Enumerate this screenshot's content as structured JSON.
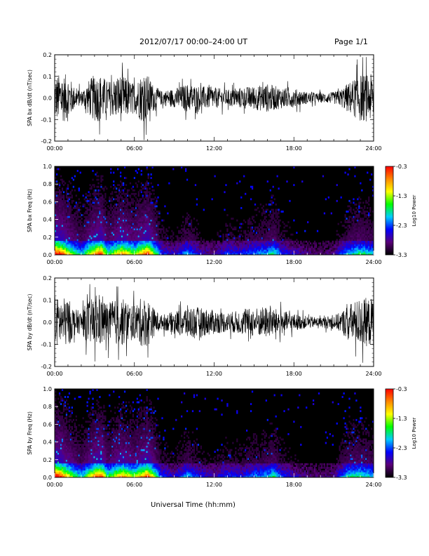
{
  "header": {
    "title": "2012/07/17  00:00–24:00 UT",
    "page": "Page 1/1"
  },
  "xaxis": {
    "label": "Universal Time (hh:mm)",
    "ticks": [
      "00:00",
      "06:00",
      "12:00",
      "18:00",
      "24:00"
    ]
  },
  "colorbar": {
    "label": "Log10 Power",
    "ticks": [
      "-0.3",
      "-1.3",
      "-2.3",
      "-3.3"
    ],
    "colors": [
      "#000000",
      "#5a0078",
      "#0000ff",
      "#00ccff",
      "#00ff00",
      "#ffff00",
      "#ff8800",
      "#ff0000"
    ]
  },
  "chart_data": [
    {
      "type": "line",
      "ylabel": "SPA bx dB/dt (nT/sec)",
      "xlim": [
        0,
        24
      ],
      "ylim": [
        -0.2,
        0.2
      ],
      "yticks": [
        "0.2",
        "0.1",
        "0.0",
        "-0.1",
        "-0.2"
      ],
      "envelope": {
        "hours": [
          0,
          1,
          1.5,
          2,
          2.5,
          3,
          3.5,
          4,
          5,
          6,
          6.5,
          7,
          7.5,
          8,
          9,
          10,
          11,
          12,
          13,
          14,
          15,
          16,
          17,
          18,
          19,
          20,
          21,
          21.5,
          22,
          23,
          24
        ],
        "amplitude": [
          0.2,
          0.2,
          0.09,
          0.06,
          0.14,
          0.2,
          0.2,
          0.14,
          0.2,
          0.12,
          0.2,
          0.2,
          0.1,
          0.06,
          0.08,
          0.12,
          0.1,
          0.09,
          0.07,
          0.09,
          0.1,
          0.12,
          0.09,
          0.08,
          0.05,
          0.04,
          0.05,
          0.07,
          0.12,
          0.2,
          0.2
        ]
      }
    },
    {
      "type": "heatmap",
      "ylabel": "SPA bx Freq (Hz)",
      "xlim": [
        0,
        24
      ],
      "ylim": [
        0,
        1.0
      ],
      "yticks": [
        "1.0",
        "0.8",
        "0.6",
        "0.4",
        "0.2",
        "0.0"
      ],
      "zlim": [
        -3.3,
        -0.3
      ],
      "activity": {
        "hours": [
          0,
          0.5,
          1,
          2,
          3,
          3.5,
          4,
          5,
          6,
          7,
          8,
          9,
          10,
          11,
          12,
          13,
          14,
          15,
          16,
          16.5,
          17,
          18,
          19,
          20,
          21,
          22,
          23,
          24
        ],
        "level": [
          1.0,
          0.9,
          0.7,
          0.4,
          0.8,
          0.9,
          0.5,
          0.8,
          0.6,
          0.9,
          0.3,
          0.2,
          0.4,
          0.2,
          0.15,
          0.3,
          0.25,
          0.35,
          0.4,
          0.5,
          0.3,
          0.2,
          0.15,
          0.1,
          0.15,
          0.4,
          0.5,
          0.4
        ]
      }
    },
    {
      "type": "line",
      "ylabel": "SPA by dB/dt (nT/sec)",
      "xlim": [
        0,
        24
      ],
      "ylim": [
        -0.2,
        0.2
      ],
      "yticks": [
        "0.2",
        "0.1",
        "0.0",
        "-0.1",
        "-0.2"
      ],
      "envelope": {
        "hours": [
          0,
          1,
          1.5,
          2,
          2.5,
          3,
          3.5,
          4,
          5,
          6,
          6.5,
          7,
          7.5,
          8,
          9,
          10,
          11,
          12,
          13,
          14,
          15,
          16,
          17,
          18,
          19,
          20,
          21,
          21.5,
          22,
          23,
          24
        ],
        "amplitude": [
          0.2,
          0.2,
          0.11,
          0.09,
          0.18,
          0.2,
          0.2,
          0.16,
          0.2,
          0.14,
          0.2,
          0.2,
          0.11,
          0.06,
          0.09,
          0.14,
          0.12,
          0.1,
          0.08,
          0.1,
          0.12,
          0.13,
          0.1,
          0.07,
          0.05,
          0.04,
          0.06,
          0.08,
          0.14,
          0.2,
          0.2
        ]
      }
    },
    {
      "type": "heatmap",
      "ylabel": "SPA by Freq (Hz)",
      "xlim": [
        0,
        24
      ],
      "ylim": [
        0,
        1.0
      ],
      "yticks": [
        "1.0",
        "0.8",
        "0.6",
        "0.4",
        "0.2",
        "0.0"
      ],
      "zlim": [
        -3.3,
        -0.3
      ],
      "activity": {
        "hours": [
          0,
          0.5,
          1,
          2,
          3,
          3.5,
          4,
          5,
          6,
          7,
          8,
          9,
          10,
          11,
          12,
          13,
          14,
          15,
          16,
          16.5,
          17,
          18,
          19,
          20,
          21,
          22,
          23,
          24
        ],
        "level": [
          1.0,
          0.9,
          0.7,
          0.4,
          0.8,
          0.9,
          0.5,
          0.8,
          0.6,
          0.9,
          0.3,
          0.2,
          0.4,
          0.25,
          0.2,
          0.3,
          0.25,
          0.35,
          0.4,
          0.5,
          0.3,
          0.2,
          0.15,
          0.12,
          0.15,
          0.45,
          0.5,
          0.4
        ]
      }
    }
  ]
}
